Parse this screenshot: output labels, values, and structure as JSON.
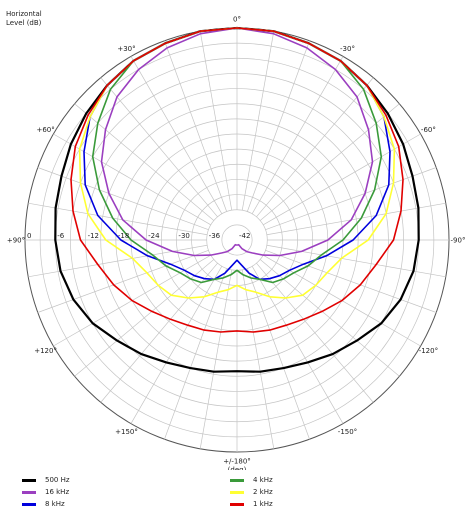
{
  "chart_data": {
    "type": "polar",
    "ylabel_lines": [
      "Horizontal",
      "Level  (dB)"
    ],
    "xlabel": "(deg)",
    "radial_range": [
      -42,
      0
    ],
    "radial_tick_labels": [
      "0",
      "-6",
      "-12",
      "-18",
      "-24",
      "-30",
      "-36",
      "-42"
    ],
    "angle_labels": [
      {
        "angle": 0,
        "text": "0°"
      },
      {
        "angle": 30,
        "text": "-30°"
      },
      {
        "angle": 60,
        "text": "-60°"
      },
      {
        "angle": 90,
        "text": "-90°"
      },
      {
        "angle": 120,
        "text": "-120°"
      },
      {
        "angle": 150,
        "text": "-150°"
      },
      {
        "angle": 180,
        "text": "+/-180°"
      },
      {
        "angle": 210,
        "text": "+150°"
      },
      {
        "angle": 240,
        "text": "+120°"
      },
      {
        "angle": 270,
        "text": "+90°"
      },
      {
        "angle": 300,
        "text": "+60°"
      },
      {
        "angle": 330,
        "text": "+30°"
      }
    ],
    "grid": true,
    "legend_position": "bottom",
    "angles": [
      0,
      10,
      20,
      30,
      40,
      50,
      60,
      70,
      80,
      90,
      100,
      110,
      120,
      130,
      140,
      150,
      160,
      170,
      180,
      190,
      200,
      210,
      220,
      230,
      240,
      250,
      260,
      270,
      280,
      290,
      300,
      310,
      320,
      330,
      340,
      350
    ],
    "series": [
      {
        "name": "500 Hz",
        "color": "#000000",
        "values": [
          0,
          0,
          -0.5,
          -1,
          -2,
          -3,
          -4,
          -5,
          -5.5,
          -6,
          -6.5,
          -7.5,
          -9,
          -11,
          -12.5,
          -14,
          -15,
          -15.5,
          -16,
          -15.5,
          -15,
          -14,
          -12.5,
          -11,
          -9,
          -7.5,
          -6.5,
          -6,
          -5.5,
          -5,
          -4,
          -3,
          -2,
          -1,
          -0.5,
          0
        ]
      },
      {
        "name": "16 kHz",
        "color": "#9b3fc0",
        "values": [
          0,
          -0.5,
          -1.5,
          -3,
          -5,
          -8,
          -11,
          -15,
          -19,
          -24,
          -29,
          -33,
          -36,
          -38,
          -39,
          -40,
          -41,
          -41,
          -41,
          -41,
          -41,
          -40,
          -39,
          -38,
          -36,
          -33,
          -29,
          -24,
          -19,
          -15,
          -11,
          -8,
          -5,
          -3,
          -1.5,
          -0.5
        ]
      },
      {
        "name": "8 kHz",
        "color": "#0000dd",
        "values": [
          0,
          0,
          -0.5,
          -1,
          -2,
          -4,
          -7,
          -10,
          -14,
          -19,
          -24,
          -28,
          -30,
          -31,
          -32,
          -33,
          -35,
          -37,
          -38,
          -37,
          -35,
          -33,
          -32,
          -31,
          -30,
          -28,
          -24,
          -19,
          -14,
          -10,
          -7,
          -4,
          -2,
          -1,
          -0.5,
          0
        ]
      },
      {
        "name": "4 kHz",
        "color": "#3a9a3a",
        "values": [
          0,
          0,
          -0.5,
          -1,
          -3,
          -6,
          -9,
          -13,
          -17,
          -21,
          -25,
          -27,
          -29,
          -30,
          -31,
          -33,
          -34,
          -35,
          -36,
          -35,
          -34,
          -33,
          -31,
          -30,
          -29,
          -27,
          -25,
          -21,
          -17,
          -13,
          -9,
          -6,
          -3,
          -1,
          -0.5,
          0
        ]
      },
      {
        "name": "2 kHz",
        "color": "#ffff33",
        "values": [
          0,
          0,
          -0.5,
          -1,
          -2,
          -4,
          -6,
          -9,
          -12,
          -16,
          -21,
          -23,
          -24,
          -25,
          -27,
          -29,
          -31,
          -32,
          -33,
          -32,
          -31,
          -29,
          -27,
          -25,
          -24,
          -23,
          -21,
          -16,
          -12,
          -9,
          -6,
          -4,
          -2,
          -1,
          -0.5,
          0
        ]
      },
      {
        "name": "1 kHz",
        "color": "#e00000",
        "values": [
          0,
          0,
          -0.5,
          -1,
          -2,
          -3.5,
          -5,
          -7,
          -9,
          -11,
          -14,
          -16,
          -18,
          -20,
          -21.5,
          -22.5,
          -23,
          -23.5,
          -24,
          -23.5,
          -23,
          -22.5,
          -21.5,
          -20,
          -18,
          -16,
          -14,
          -11,
          -9,
          -7,
          -5,
          -3.5,
          -2,
          -1,
          -0.5,
          0
        ]
      }
    ]
  }
}
